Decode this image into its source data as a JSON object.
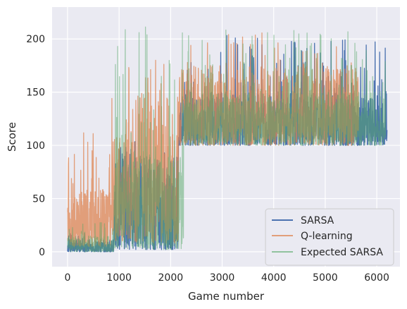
{
  "chart_data": {
    "type": "line",
    "xlabel": "Game number",
    "ylabel": "Score",
    "xlim": [
      -300,
      6450
    ],
    "ylim": [
      -14,
      230
    ],
    "xticks": [
      0,
      1000,
      2000,
      3000,
      4000,
      5000,
      6000
    ],
    "yticks": [
      0,
      50,
      100,
      150,
      200
    ],
    "grid": true,
    "legend_position": "lower-right",
    "series": [
      {
        "name": "SARSA",
        "color": "#4c72b0",
        "opacity": 1.0,
        "n_games": 6200,
        "phases": [
          {
            "x_start": 0,
            "x_end": 900,
            "floor": 0,
            "typical_max": 12,
            "peak": 20
          },
          {
            "x_start": 900,
            "x_end": 1250,
            "floor": 2,
            "typical_max": 100,
            "peak": 130
          },
          {
            "x_start": 1250,
            "x_end": 2150,
            "floor": 2,
            "typical_max": 90,
            "peak": 120
          },
          {
            "x_start": 2150,
            "x_end": 6200,
            "floor": 100,
            "typical_max": 150,
            "peak": 204
          }
        ]
      },
      {
        "name": "Q-learning",
        "color": "#dd8452",
        "opacity": 0.75,
        "n_games": 5650,
        "phases": [
          {
            "x_start": 0,
            "x_end": 850,
            "floor": 5,
            "typical_max": 60,
            "peak": 113
          },
          {
            "x_start": 850,
            "x_end": 1300,
            "floor": 10,
            "typical_max": 120,
            "peak": 190
          },
          {
            "x_start": 1300,
            "x_end": 2150,
            "floor": 8,
            "typical_max": 150,
            "peak": 207
          },
          {
            "x_start": 2150,
            "x_end": 5650,
            "floor": 100,
            "typical_max": 175,
            "peak": 207
          }
        ]
      },
      {
        "name": "Expected SARSA",
        "color": "#55a868",
        "opacity": 0.5,
        "n_games": 6170,
        "phases": [
          {
            "x_start": 0,
            "x_end": 900,
            "floor": 0,
            "typical_max": 15,
            "peak": 30
          },
          {
            "x_start": 900,
            "x_end": 2250,
            "floor": 2,
            "typical_max": 90,
            "peak": 214
          },
          {
            "x_start": 2250,
            "x_end": 6170,
            "floor": 100,
            "typical_max": 150,
            "peak": 210
          }
        ]
      }
    ]
  }
}
